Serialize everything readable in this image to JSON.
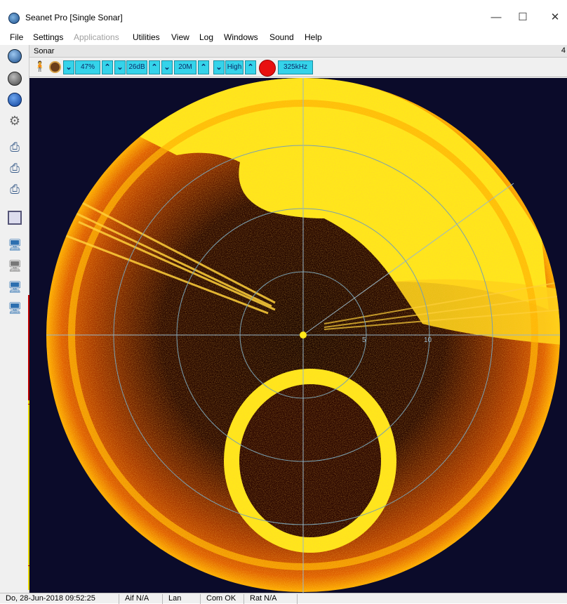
{
  "window": {
    "title": "Seanet Pro [Single Sonar]",
    "min_symbol": "—",
    "max_symbol": "☐",
    "close_symbol": "✕"
  },
  "menu": {
    "items": [
      "File",
      "Settings",
      "Applications",
      "Utilities",
      "View",
      "Log",
      "Windows",
      "Sound",
      "Help"
    ],
    "disabled": [
      "Applications"
    ]
  },
  "left_toolbar": {
    "icons": [
      "compass-icon",
      "sonar-head-icon",
      "stop-icon",
      "settings-gears-icon",
      "printer-icon",
      "printer-icon-2",
      "printer-icon-3",
      "panel-icon",
      "monitor-icon",
      "monitor-icon-2",
      "monitor-icon-3",
      "monitor-icon-4"
    ]
  },
  "panel": {
    "title": "Sonar",
    "number": "4"
  },
  "controls": {
    "gain": "47%",
    "contrast": "26dB",
    "range": "20M",
    "resolution": "High",
    "frequency": "325kHz",
    "record_color": "#e81010",
    "button_color": "#35d3ea"
  },
  "display": {
    "range_labels": [
      "5",
      "10"
    ],
    "background": "#0b0b2a",
    "echo_color": "#ffe81a",
    "ring_color": "#7aa0b0"
  },
  "status": {
    "datetime": "Do, 28-Jun-2018 09:52:25",
    "aif": "Aif N/A",
    "lan": "Lan",
    "com": "Com OK",
    "rat": "Rat N/A"
  }
}
